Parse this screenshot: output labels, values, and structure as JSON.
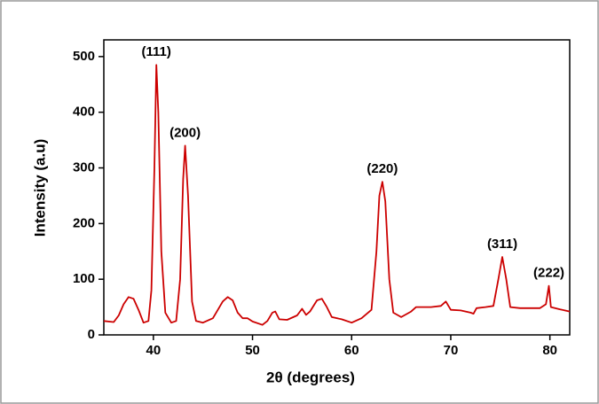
{
  "chart_data": {
    "type": "line",
    "xlabel": "2θ (degrees)",
    "ylabel": "Intensity (a.u)",
    "xlim": [
      35,
      82
    ],
    "ylim": [
      0,
      530
    ],
    "xticks": [
      40,
      50,
      60,
      70,
      80
    ],
    "yticks": [
      0,
      100,
      200,
      300,
      400,
      500
    ],
    "color": "#cc0000",
    "x": [
      35,
      36,
      36.5,
      37,
      37.5,
      38,
      38.5,
      39,
      39.5,
      39.8,
      40.1,
      40.3,
      40.5,
      40.8,
      41.2,
      41.8,
      42.3,
      42.7,
      43,
      43.2,
      43.5,
      43.9,
      44.3,
      45,
      45.5,
      46,
      46.5,
      47,
      47.5,
      48,
      48.5,
      49,
      49.5,
      50,
      51,
      51.5,
      52,
      52.3,
      52.7,
      53.5,
      54.5,
      55,
      55.4,
      55.8,
      56.5,
      57,
      57.5,
      58,
      59,
      60,
      61,
      62,
      62.5,
      62.8,
      63.1,
      63.4,
      63.8,
      64.2,
      65,
      66,
      66.5,
      67,
      68,
      69,
      69.5,
      70,
      71,
      72,
      72.3,
      72.6,
      73.5,
      74.3,
      74.8,
      75.2,
      75.6,
      76,
      77,
      78,
      79,
      79.6,
      79.9,
      80.1,
      81,
      82
    ],
    "values": [
      25,
      23,
      35,
      55,
      68,
      65,
      45,
      22,
      25,
      80,
      300,
      485,
      400,
      150,
      40,
      22,
      25,
      100,
      280,
      340,
      250,
      60,
      25,
      22,
      26,
      30,
      45,
      60,
      68,
      62,
      40,
      30,
      30,
      24,
      18,
      25,
      40,
      42,
      28,
      27,
      35,
      47,
      36,
      42,
      62,
      65,
      50,
      32,
      28,
      22,
      30,
      45,
      150,
      250,
      275,
      240,
      100,
      40,
      32,
      42,
      50,
      50,
      50,
      52,
      60,
      45,
      44,
      40,
      38,
      48,
      50,
      52,
      100,
      140,
      100,
      50,
      48,
      48,
      48,
      55,
      88,
      50,
      46,
      42
    ],
    "annotations": [
      {
        "text": "(111)",
        "x": 40.3,
        "y": 485
      },
      {
        "text": "(200)",
        "x": 43.2,
        "y": 340
      },
      {
        "text": "(220)",
        "x": 63.1,
        "y": 275
      },
      {
        "text": "(311)",
        "x": 75.2,
        "y": 140
      },
      {
        "text": "(222)",
        "x": 79.9,
        "y": 88
      }
    ]
  }
}
